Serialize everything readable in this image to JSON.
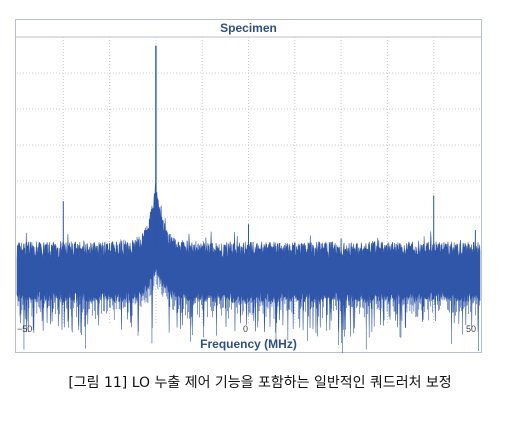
{
  "chart_data": {
    "type": "line",
    "title": "Specimen",
    "xlabel": "Frequency (MHz)",
    "ylabel": "",
    "xlim": [
      -50,
      50
    ],
    "xticks": [
      -50,
      0,
      50
    ],
    "xtick_labels": [
      "−50",
      "0",
      "50"
    ],
    "ylim": [
      0,
      1
    ],
    "grid": true,
    "series": [
      {
        "color": "#2f56a8",
        "noise_floor_band": [
          0.08,
          0.28
        ],
        "spurs": [
          {
            "x": -20,
            "y": 0.97
          },
          {
            "x": -40,
            "y": 0.43
          },
          {
            "x": 0,
            "y": 0.35
          },
          {
            "x": 20,
            "y": 0.3
          },
          {
            "x": 40,
            "y": 0.45
          },
          {
            "x": 49,
            "y": 0.33
          }
        ]
      }
    ]
  },
  "caption": "[그림 11] LO 누출 제어 기능을 포함하는 일반적인 쿼드러처 보정"
}
